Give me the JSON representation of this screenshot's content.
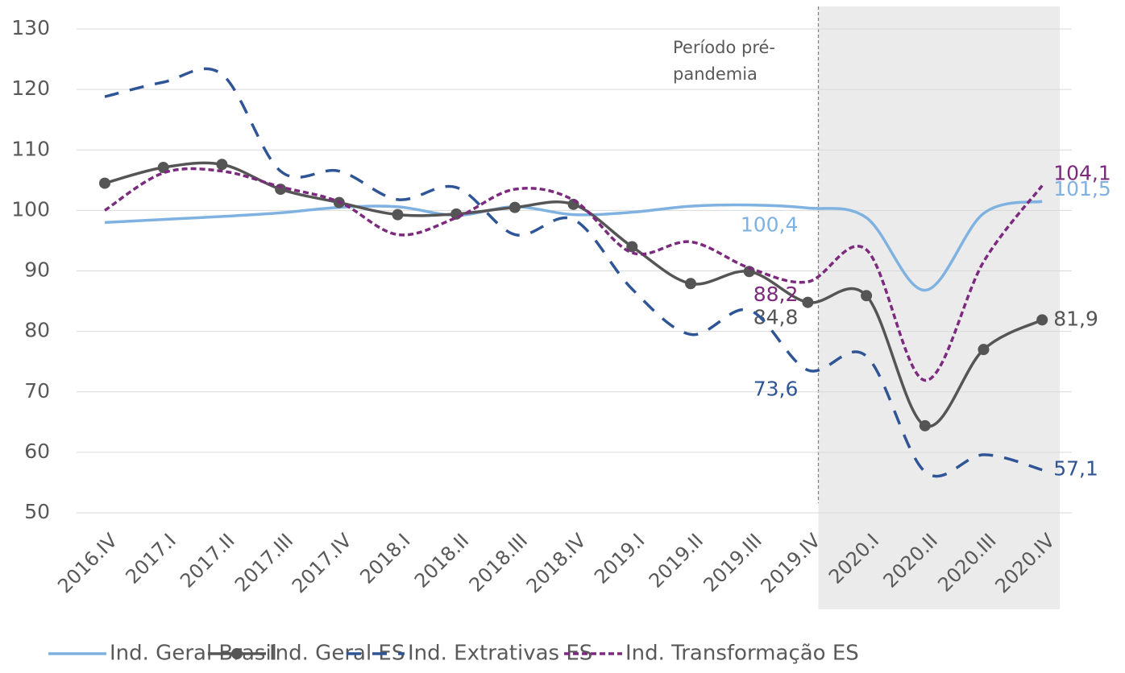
{
  "chart_data": {
    "type": "line",
    "categories": [
      "2016.IV",
      "2017.I",
      "2017.II",
      "2017.III",
      "2017.IV",
      "2018.I",
      "2018.II",
      "2018.III",
      "2018.IV",
      "2019.I",
      "2019.II",
      "2019.III",
      "2019.IV",
      "2020.I",
      "2020.II",
      "2020.III",
      "2020.IV"
    ],
    "series": [
      {
        "name": "Ind. Geral Brasil",
        "color": "#7fb2e0",
        "style": "solid",
        "markers": false,
        "values": [
          98,
          98.5,
          99,
          99.6,
          100.5,
          100.6,
          99.2,
          100.6,
          99.3,
          99.7,
          100.7,
          100.9,
          100.4,
          98.8,
          86.8,
          99.5,
          101.5
        ],
        "value_labels": [
          null,
          null,
          null,
          null,
          null,
          null,
          null,
          null,
          null,
          null,
          null,
          null,
          "100,4",
          null,
          null,
          null,
          "101,5"
        ]
      },
      {
        "name": "Ind. Geral ES",
        "color": "#555555",
        "style": "solid",
        "markers": true,
        "values": [
          104.5,
          107.1,
          107.6,
          103.5,
          101.3,
          99.3,
          99.4,
          100.5,
          101,
          94,
          87.9,
          89.9,
          84.8,
          85.9,
          64.4,
          77,
          81.9
        ],
        "value_labels": [
          null,
          null,
          null,
          null,
          null,
          null,
          null,
          null,
          null,
          null,
          null,
          null,
          "84,8",
          null,
          null,
          null,
          "81,9"
        ]
      },
      {
        "name": "Ind. Extrativas ES",
        "color": "#2f5597",
        "style": "dashed",
        "markers": false,
        "values": [
          118.8,
          121.2,
          122.5,
          106.5,
          106.5,
          101.8,
          103.8,
          96,
          98.5,
          87,
          79.5,
          83.5,
          73.6,
          75.9,
          56.8,
          59.6,
          57.1
        ],
        "value_labels": [
          null,
          null,
          null,
          null,
          null,
          null,
          null,
          null,
          null,
          null,
          null,
          null,
          "73,6",
          null,
          null,
          null,
          "57,1"
        ]
      },
      {
        "name": "Ind. Transformação ES",
        "color": "#7b2a7e",
        "style": "dotted",
        "markers": false,
        "values": [
          100,
          106.2,
          106.5,
          103.9,
          101.4,
          96,
          98.8,
          103.5,
          101.7,
          93,
          94.8,
          90.5,
          88.2,
          93.5,
          71.9,
          91.5,
          104.1
        ],
        "value_labels": [
          null,
          null,
          null,
          null,
          null,
          null,
          null,
          null,
          null,
          null,
          null,
          null,
          "88,2",
          null,
          null,
          null,
          "104,1"
        ]
      }
    ],
    "ylim": [
      50,
      130
    ],
    "yticks": [
      50,
      60,
      70,
      80,
      90,
      100,
      110,
      120,
      130
    ],
    "grid": true,
    "shaded_categories": [
      "2020.I",
      "2020.IV"
    ],
    "annotation": [
      "Período pré-",
      "pandemia"
    ],
    "legend": "bottom"
  }
}
